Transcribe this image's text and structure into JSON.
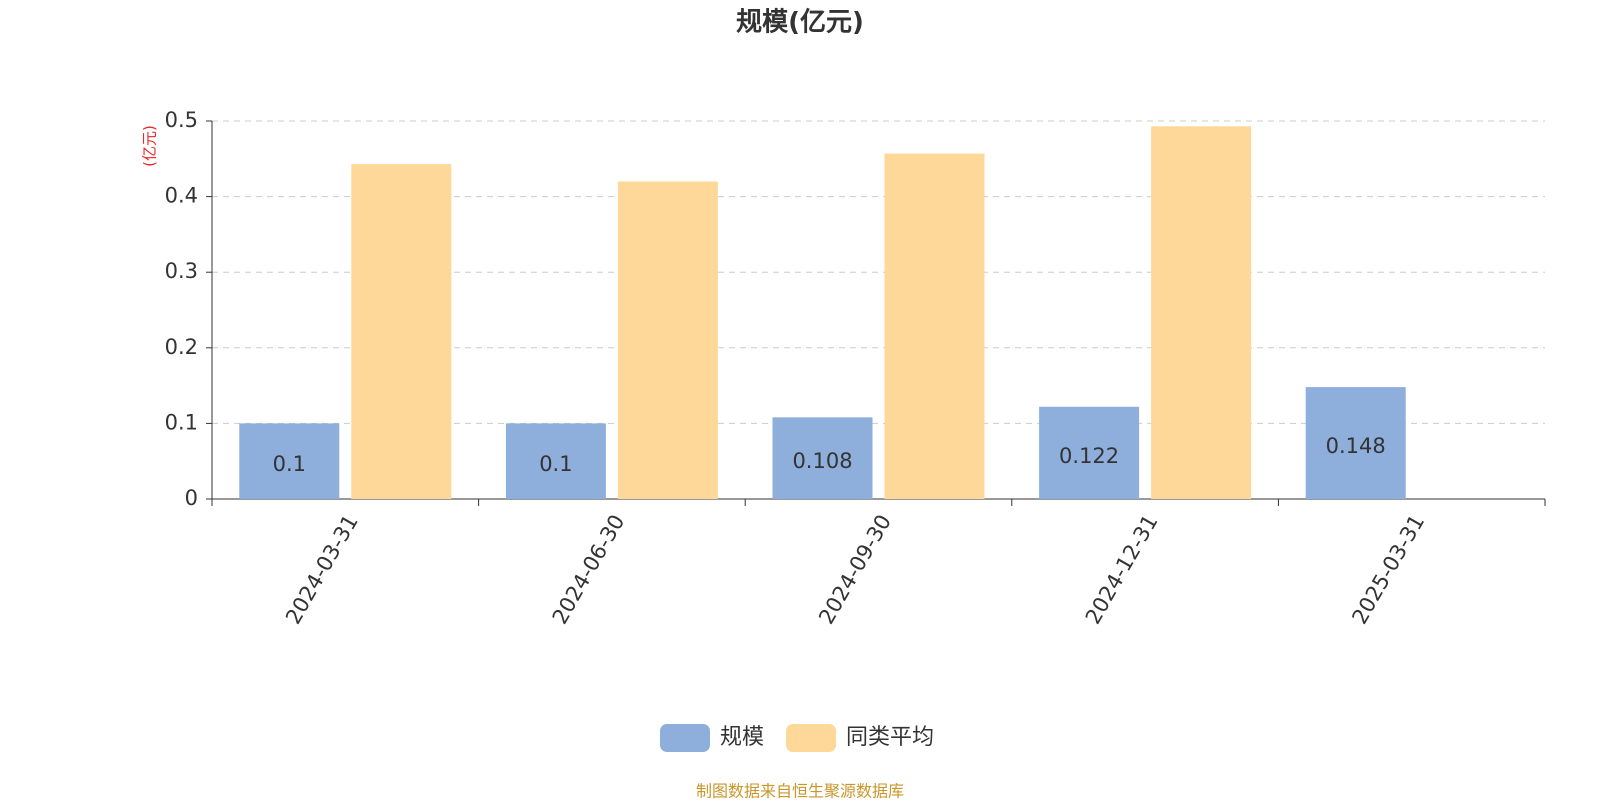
{
  "chart_data": {
    "type": "bar",
    "title": "规模(亿元)",
    "y_label": "(亿元)",
    "categories": [
      "2024-03-31",
      "2024-06-30",
      "2024-09-30",
      "2024-12-31",
      "2025-03-31"
    ],
    "series": [
      {
        "name": "规模",
        "color": "#8eaedb",
        "values": [
          0.1,
          0.1,
          0.108,
          0.122,
          0.148
        ]
      },
      {
        "name": "同类平均",
        "color": "#fdd899",
        "values": [
          0.443,
          0.42,
          0.457,
          0.493,
          null
        ]
      }
    ],
    "data_labels_series": 0,
    "ylim": [
      0,
      0.5
    ],
    "yticks": [
      0,
      0.1,
      0.2,
      0.3,
      0.4,
      0.5
    ],
    "grid": true,
    "source": "制图数据来自恒生聚源数据库"
  }
}
